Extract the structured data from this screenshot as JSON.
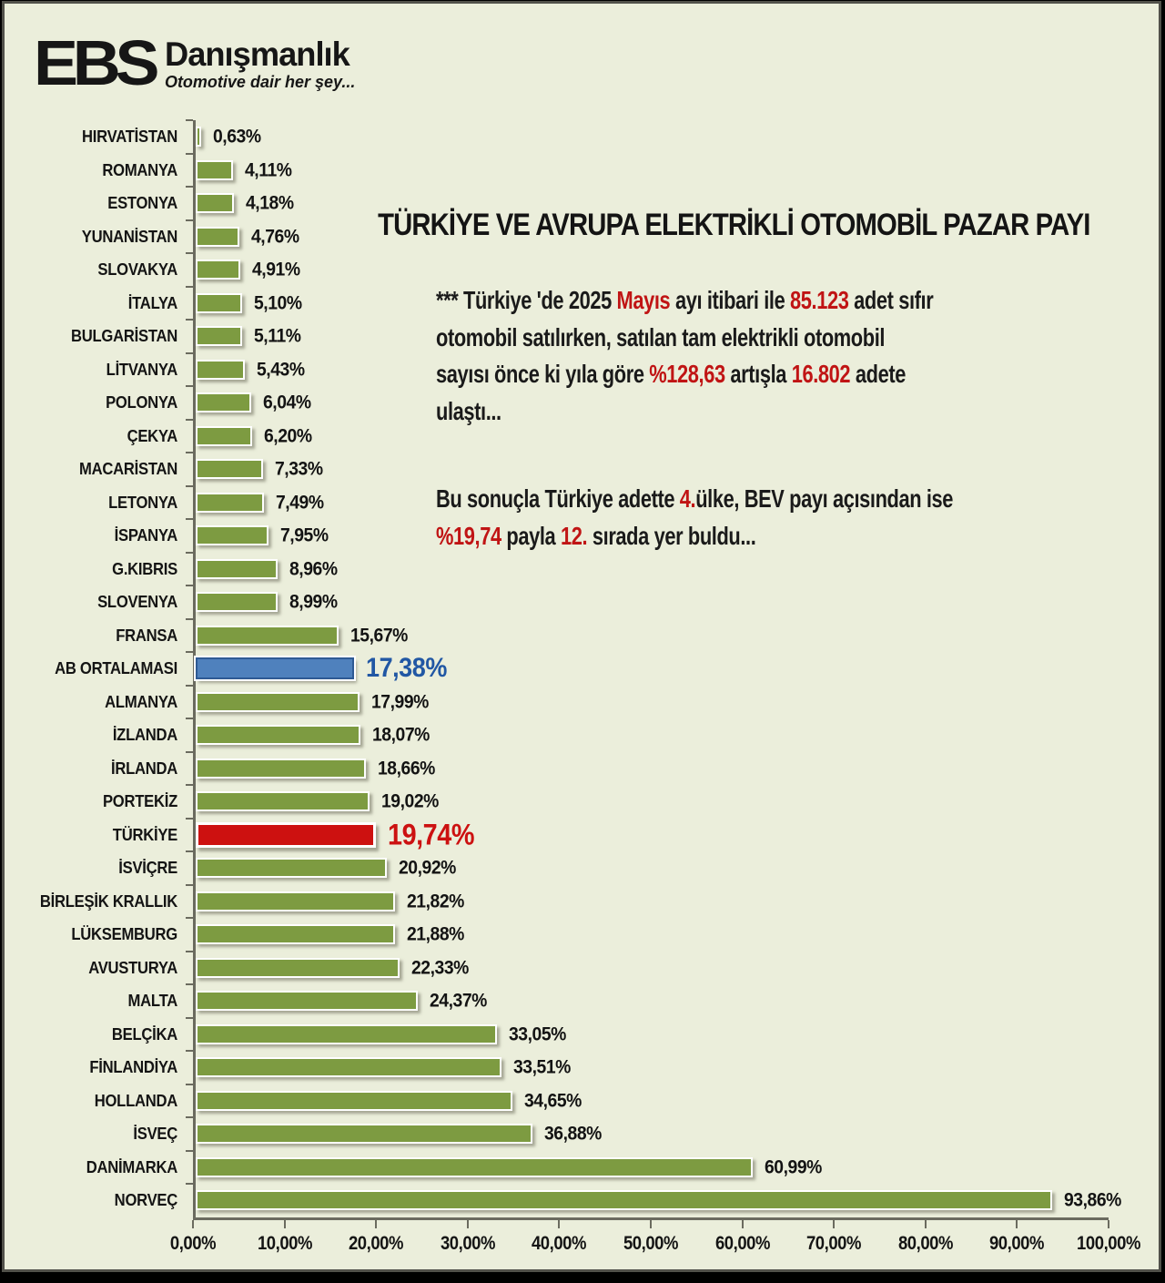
{
  "logo": {
    "ebs": "EBS",
    "name": "Danışmanlık",
    "tagline": "Otomotive dair her şey..."
  },
  "title": "TÜRKİYE VE AVRUPA ELEKTRİKLİ OTOMOBİL PAZAR PAYI",
  "annotation": {
    "paragraphs": [
      [
        [
          {
            "t": "*** Türkiye 'de 2025 "
          },
          {
            "t": "Mayıs",
            "red": true
          },
          {
            "t": " ayı itibari ile "
          },
          {
            "t": "85.123",
            "red": true
          },
          {
            "t": " adet sıfır"
          }
        ],
        [
          {
            "t": "otomobil satılırken, satılan tam elektrikli otomobil"
          }
        ],
        [
          {
            "t": "sayısı önce ki yıla göre "
          },
          {
            "t": "%128,63",
            "red": true
          },
          {
            "t": " artışla "
          },
          {
            "t": "16.802",
            "red": true
          },
          {
            "t": " adete"
          }
        ],
        [
          {
            "t": "ulaştı..."
          }
        ]
      ],
      [
        [
          {
            "t": "Bu sonuçla Türkiye adette "
          },
          {
            "t": "4.",
            "red": true
          },
          {
            "t": "ülke, BEV payı açısından ise"
          }
        ],
        [
          {
            "t": "%19,74",
            "red": true
          },
          {
            "t": " payla "
          },
          {
            "t": "12.",
            "red": true
          },
          {
            "t": " sırada yer buldu..."
          }
        ]
      ]
    ]
  },
  "colors": {
    "background": "#ebeedb",
    "bar_green": "#7d9b41",
    "bar_blue": "#4f81bd",
    "bar_red": "#cd1110",
    "value_blue": "#2157a4",
    "value_red": "#cc1111",
    "text_red": "#c01414",
    "axis": "#6b6b5f"
  },
  "chart_data": {
    "type": "bar",
    "orientation": "horizontal",
    "title": "TÜRKİYE VE AVRUPA ELEKTRİKLİ OTOMOBİL PAZAR PAYI",
    "xlabel": "",
    "ylabel": "",
    "xlim": [
      0,
      100
    ],
    "grid": false,
    "legend": false,
    "x_ticks": [
      "0,00%",
      "10,00%",
      "20,00%",
      "30,00%",
      "40,00%",
      "50,00%",
      "60,00%",
      "70,00%",
      "80,00%",
      "90,00%",
      "100,00%"
    ],
    "categories": [
      "HIRVATİSTAN",
      "ROMANYA",
      "ESTONYA",
      "YUNANİSTAN",
      "SLOVAKYA",
      "İTALYA",
      "BULGARİSTAN",
      "LİTVANYA",
      "POLONYA",
      "ÇEKYA",
      "MACARİSTAN",
      "LETONYA",
      "İSPANYA",
      "G.KIBRIS",
      "SLOVENYA",
      "FRANSA",
      "AB ORTALAMASI",
      "ALMANYA",
      "İZLANDA",
      "İRLANDA",
      "PORTEKİZ",
      "TÜRKİYE",
      "İSVİÇRE",
      "BİRLEŞİK KRALLIK",
      "LÜKSEMBURG",
      "AVUSTURYA",
      "MALTA",
      "BELÇİKA",
      "FİNLANDİYA",
      "HOLLANDA",
      "İSVEÇ",
      "DANİMARKA",
      "NORVEÇ"
    ],
    "values": [
      0.63,
      4.11,
      4.18,
      4.76,
      4.91,
      5.1,
      5.11,
      5.43,
      6.04,
      6.2,
      7.33,
      7.49,
      7.95,
      8.96,
      8.99,
      15.67,
      17.38,
      17.99,
      18.07,
      18.66,
      19.02,
      19.74,
      20.92,
      21.82,
      21.88,
      22.33,
      24.37,
      33.05,
      33.51,
      34.65,
      36.88,
      60.99,
      93.86
    ],
    "value_labels": [
      "0,63%",
      "4,11%",
      "4,18%",
      "4,76%",
      "4,91%",
      "5,10%",
      "5,11%",
      "5,43%",
      "6,04%",
      "6,20%",
      "7,33%",
      "7,49%",
      "7,95%",
      "8,96%",
      "8,99%",
      "15,67%",
      "17,38%",
      "17,99%",
      "18,07%",
      "18,66%",
      "19,02%",
      "19,74%",
      "20,92%",
      "21,82%",
      "21,88%",
      "22,33%",
      "24,37%",
      "33,05%",
      "33,51%",
      "34,65%",
      "36,88%",
      "60,99%",
      "93,86%"
    ],
    "variants": [
      "default",
      "default",
      "default",
      "default",
      "default",
      "default",
      "default",
      "default",
      "default",
      "default",
      "default",
      "default",
      "default",
      "default",
      "default",
      "default",
      "eu",
      "default",
      "default",
      "default",
      "default",
      "turkey",
      "default",
      "default",
      "default",
      "default",
      "default",
      "default",
      "default",
      "default",
      "default",
      "default",
      "default"
    ],
    "highlights": {
      "AB ORTALAMASI": "blue",
      "TÜRKİYE": "red"
    }
  }
}
